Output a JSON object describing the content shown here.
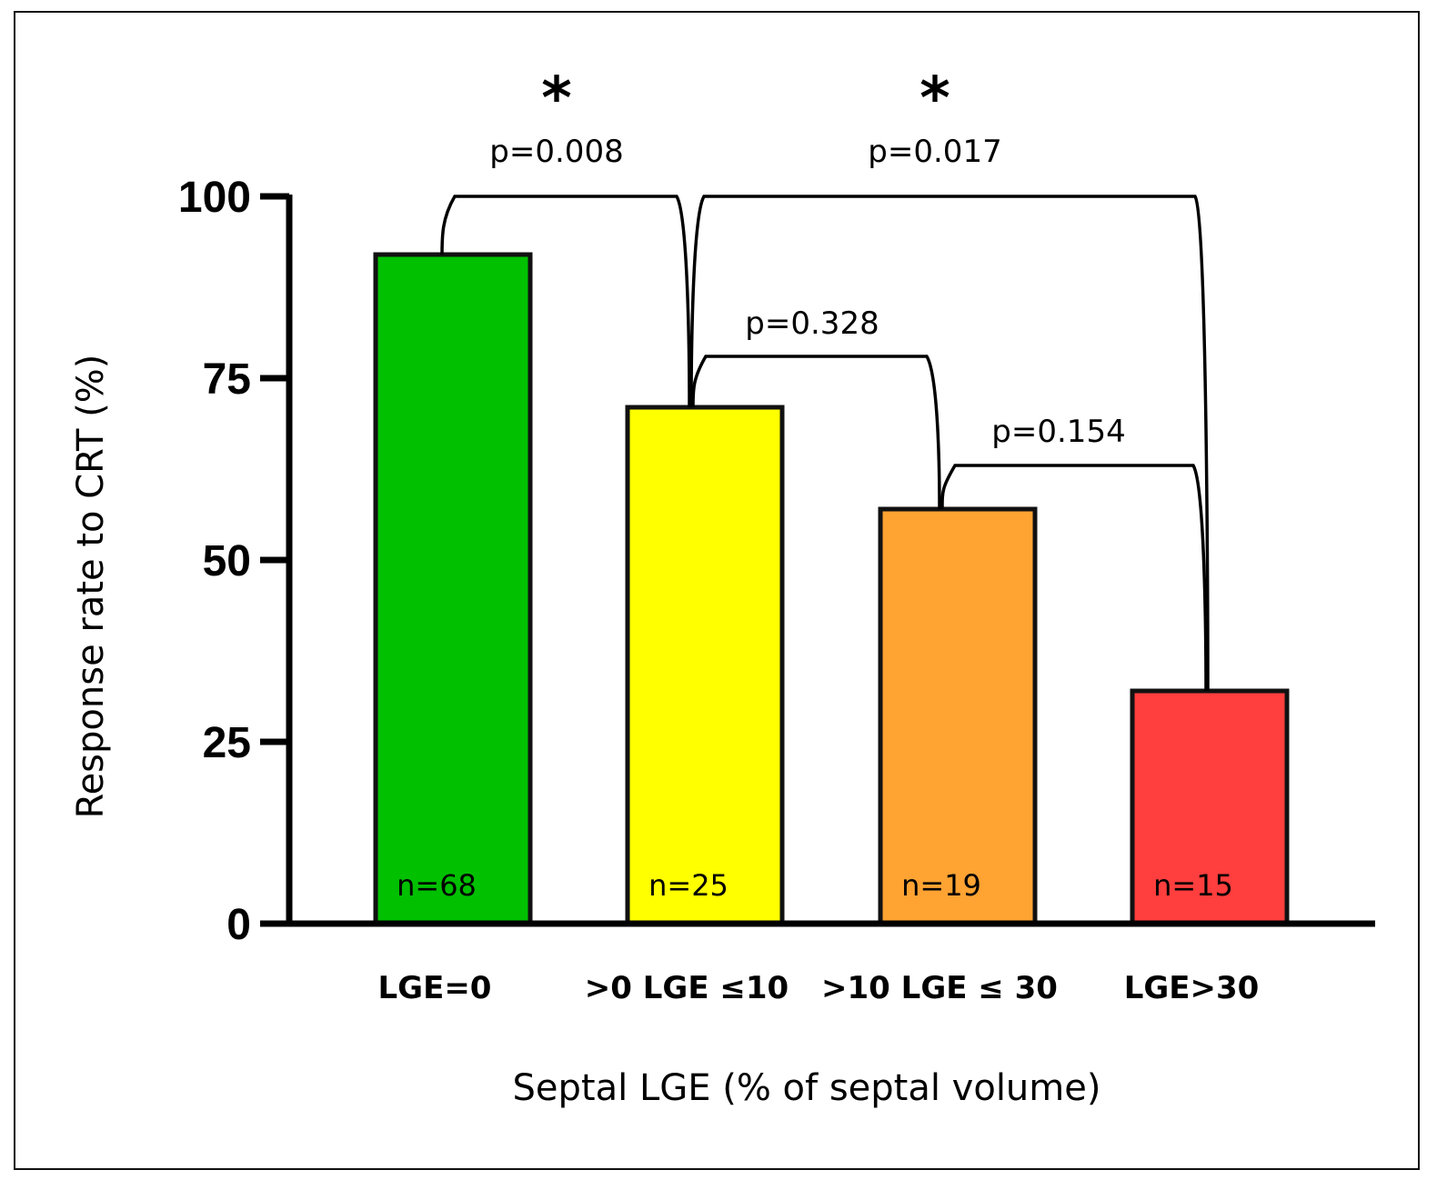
{
  "chart_data": {
    "type": "bar",
    "title": "",
    "xlabel": "Septal LGE (% of septal volume)",
    "ylabel": "Response rate to CRT (%)",
    "ylim": [
      0,
      100
    ],
    "yticks": [
      0,
      25,
      50,
      75,
      100
    ],
    "grid": false,
    "categories": [
      "LGE=0",
      ">0 LGE ≤10",
      ">10 LGE ≤ 30",
      "LGE>30"
    ],
    "values": [
      92,
      71,
      57,
      32
    ],
    "colors": [
      "#00c000",
      "#ffff00",
      "#ffa333",
      "#ff3e3e"
    ],
    "n_labels": [
      "n=68",
      "n=25",
      "n=19",
      "n=15"
    ],
    "comparisons": [
      {
        "from": 0,
        "to": 1,
        "p": "p=0.008",
        "star": "*",
        "level": 100
      },
      {
        "from": 1,
        "to": 3,
        "p": "p=0.017",
        "star": "*",
        "level": 100
      },
      {
        "from": 1,
        "to": 2,
        "p": "p=0.328",
        "level": 78
      },
      {
        "from": 2,
        "to": 3,
        "p": "p=0.154",
        "level": 63
      }
    ]
  }
}
